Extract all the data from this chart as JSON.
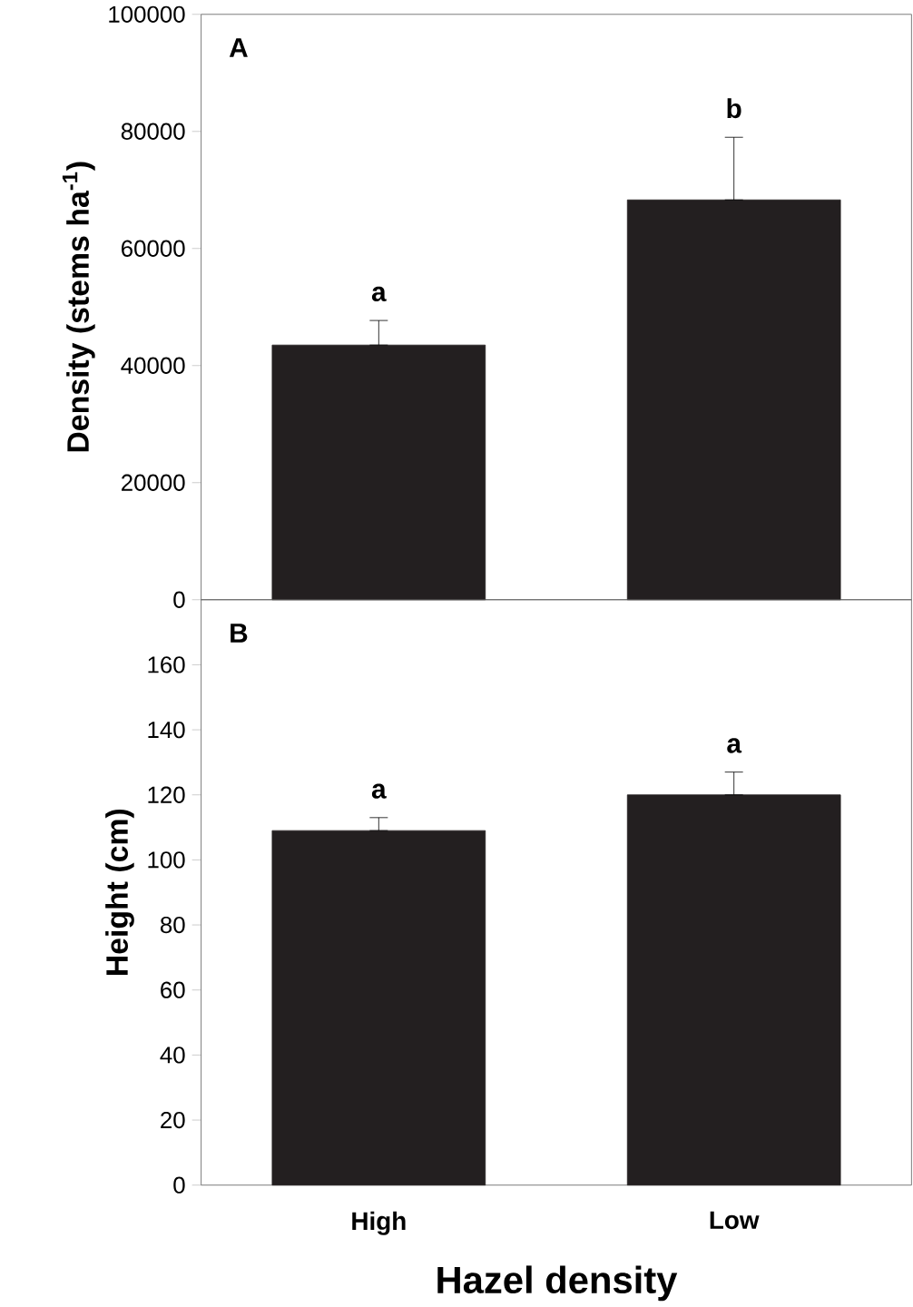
{
  "chart_data": [
    {
      "type": "bar",
      "title": "A",
      "ylabel": "Density (stems ha$^{-1}$)",
      "categories": [
        "High",
        "Low"
      ],
      "values": [
        43500,
        68300
      ],
      "errors": [
        [
          43500,
          47700
        ],
        [
          68300,
          79000
        ]
      ],
      "color": "#231f20",
      "ylim": [
        0,
        100000
      ],
      "yticks": [
        0,
        20000,
        40000,
        60000,
        80000,
        100000
      ],
      "tick_labels": "y",
      "annotations": [
        {
          "text": "a",
          "x": "High",
          "y": 47700
        },
        {
          "text": "b",
          "x": "Low",
          "y": 79000
        }
      ]
    },
    {
      "type": "bar",
      "title": "B",
      "ylabel": "Height (cm)",
      "xlabel": "Hazel density",
      "categories": [
        "High",
        "Low"
      ],
      "values": [
        109,
        120
      ],
      "errors": [
        [
          109,
          113
        ],
        [
          120,
          127
        ]
      ],
      "color": "#231f20",
      "ylim": [
        0,
        180
      ],
      "yticks": [
        0,
        20,
        40,
        60,
        80,
        100,
        120,
        140,
        160
      ],
      "annotations": [
        {
          "text": "a",
          "x": "High",
          "y": 113
        },
        {
          "text": "a",
          "x": "Low",
          "y": 127
        }
      ]
    }
  ]
}
